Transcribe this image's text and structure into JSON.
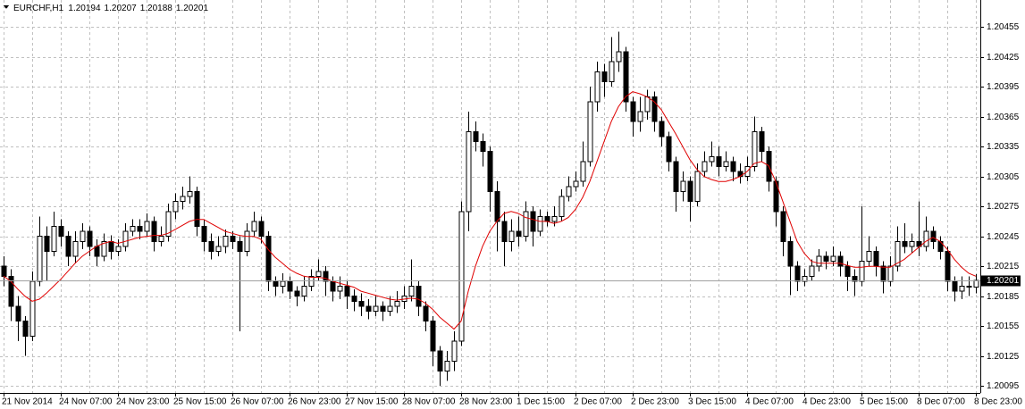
{
  "chart_data": {
    "type": "candlestick",
    "title": "EURCHF,H1",
    "categories": [
      "21 Nov 2014",
      null,
      null,
      null,
      null,
      null,
      null,
      null,
      "24 Nov 07:00",
      null,
      null,
      null,
      null,
      null,
      null,
      null,
      "24 Nov 23:00",
      null,
      null,
      null,
      null,
      null,
      null,
      null,
      "25 Nov 15:00",
      null,
      null,
      null,
      null,
      null,
      null,
      null,
      "26 Nov 07:00",
      null,
      null,
      null,
      null,
      null,
      null,
      null,
      "26 Nov 23:00",
      null,
      null,
      null,
      null,
      null,
      null,
      null,
      "27 Nov 15:00",
      null,
      null,
      null,
      null,
      null,
      null,
      null,
      "28 Nov 07:00",
      null,
      null,
      null,
      null,
      null,
      null,
      null,
      "28 Nov 23:00",
      null,
      null,
      null,
      null,
      null,
      null,
      null,
      "1 Dec 15:00",
      null,
      null,
      null,
      null,
      null,
      null,
      null,
      "2 Dec 07:00",
      null,
      null,
      null,
      null,
      null,
      null,
      null,
      "2 Dec 23:00",
      null,
      null,
      null,
      null,
      null,
      null,
      null,
      "3 Dec 15:00",
      null,
      null,
      null,
      null,
      null,
      null,
      null,
      "4 Dec 07:00",
      null,
      null,
      null,
      null,
      null,
      null,
      null,
      "4 Dec 23:00",
      null,
      null,
      null,
      null,
      null,
      null,
      null,
      "5 Dec 15:00",
      null,
      null,
      null,
      null,
      null,
      null,
      null,
      "8 Dec 07:00",
      null,
      null,
      null,
      null,
      null,
      null,
      null,
      "8 Dec 23:00"
    ],
    "open": [
      1.20215,
      1.20205,
      1.20175,
      1.2016,
      1.20145,
      1.202,
      1.20245,
      1.2023,
      1.20255,
      1.20245,
      1.20225,
      1.2024,
      1.2025,
      1.20235,
      1.20225,
      1.2024,
      1.2023,
      1.20235,
      1.2025,
      1.20255,
      1.2025,
      1.2026,
      1.2024,
      1.20245,
      1.2027,
      1.2028,
      1.20285,
      1.2029,
      1.20255,
      1.2024,
      1.2023,
      1.20235,
      1.20245,
      1.2024,
      1.2023,
      1.2025,
      1.2026,
      1.20245,
      1.202,
      1.20195,
      1.202,
      1.2019,
      1.20185,
      1.20195,
      1.20205,
      1.2021,
      1.202,
      1.2019,
      1.20195,
      1.20185,
      1.2018,
      1.20175,
      1.2017,
      1.20175,
      1.2017,
      1.20175,
      1.2018,
      1.20185,
      1.20195,
      1.20175,
      1.2016,
      1.2013,
      1.2011,
      1.2012,
      1.2014,
      1.2027,
      1.2035,
      1.2034,
      1.2033,
      1.2029,
      1.2026,
      1.2024,
      1.2025,
      1.20245,
      1.2027,
      1.2025,
      1.20265,
      1.2026,
      1.20265,
      1.20285,
      1.20295,
      1.203,
      1.2032,
      1.2038,
      1.2041,
      1.204,
      1.2042,
      1.2043,
      1.2038,
      1.2036,
      1.2037,
      1.20385,
      1.2036,
      1.20345,
      1.2032,
      1.2029,
      1.203,
      1.2028,
      1.2031,
      1.2032,
      1.20325,
      1.20315,
      1.2032,
      1.2031,
      1.20305,
      1.20315,
      1.2035,
      1.2033,
      1.203,
      1.2027,
      1.2024,
      1.20215,
      1.202,
      1.20205,
      1.20215,
      1.20225,
      1.2022,
      1.20225,
      1.20215,
      1.20205,
      1.202,
      1.2022,
      1.2023,
      1.20215,
      1.202,
      1.20215,
      1.2024,
      1.20235,
      1.2024,
      1.20235,
      1.2025,
      1.2024,
      1.2023,
      1.202,
      1.2019,
      1.20195,
      1.20194
    ],
    "high": [
      1.20225,
      1.20212,
      1.20185,
      1.20165,
      1.2021,
      1.20265,
      1.20255,
      1.2027,
      1.20262,
      1.2025,
      1.2025,
      1.20258,
      1.20255,
      1.20242,
      1.20248,
      1.20246,
      1.20242,
      1.20258,
      1.20262,
      1.20262,
      1.20268,
      1.20265,
      1.20255,
      1.20278,
      1.20288,
      1.20295,
      1.20305,
      1.20295,
      1.20262,
      1.20248,
      1.20245,
      1.20252,
      1.2025,
      1.20245,
      1.20258,
      1.2027,
      1.20265,
      1.2025,
      1.20205,
      1.20208,
      1.20205,
      1.20195,
      1.20205,
      1.20212,
      1.20222,
      1.20215,
      1.20205,
      1.20205,
      1.202,
      1.20192,
      1.20188,
      1.20182,
      1.20185,
      1.2018,
      1.20185,
      1.2019,
      1.20195,
      1.20222,
      1.202,
      1.2018,
      1.20165,
      1.20135,
      1.2013,
      1.2015,
      1.2028,
      1.2037,
      1.2036,
      1.20348,
      1.20335,
      1.203,
      1.2027,
      1.20262,
      1.20265,
      1.2028,
      1.20275,
      1.20272,
      1.2027,
      1.20275,
      1.20292,
      1.20305,
      1.2031,
      1.2034,
      1.20395,
      1.2042,
      1.20418,
      1.20445,
      1.2045,
      1.20435,
      1.20385,
      1.20385,
      1.20392,
      1.2039,
      1.20365,
      1.2035,
      1.20325,
      1.2031,
      1.20305,
      1.20318,
      1.2033,
      1.2034,
      1.20335,
      1.2033,
      1.20325,
      1.20318,
      1.20325,
      1.20365,
      1.20355,
      1.20335,
      1.20305,
      1.20275,
      1.20245,
      1.2022,
      1.20212,
      1.20222,
      1.20232,
      1.2023,
      1.20235,
      1.2023,
      1.2022,
      1.20212,
      1.20275,
      1.20245,
      1.20235,
      1.2022,
      1.20225,
      1.20255,
      1.20258,
      1.20248,
      1.2028,
      1.20265,
      1.20255,
      1.20245,
      1.20235,
      1.20205,
      1.20205,
      1.20205,
      1.20207
    ],
    "low": [
      1.20195,
      1.2016,
      1.2014,
      1.20125,
      1.2014,
      1.20195,
      1.202,
      1.20225,
      1.20235,
      1.20215,
      1.20218,
      1.20232,
      1.20225,
      1.20215,
      1.2022,
      1.20222,
      1.20225,
      1.2023,
      1.20245,
      1.20242,
      1.20245,
      1.2023,
      1.20235,
      1.2024,
      1.20262,
      1.20272,
      1.20278,
      1.20245,
      1.2023,
      1.20222,
      1.20225,
      1.20228,
      1.20232,
      1.2015,
      1.20225,
      1.20245,
      1.20238,
      1.2019,
      1.20185,
      1.20188,
      1.20182,
      1.20175,
      1.2018,
      1.2019,
      1.202,
      1.20185,
      1.2018,
      1.20182,
      1.20172,
      1.2017,
      1.20165,
      1.20162,
      1.20165,
      1.2016,
      1.20165,
      1.20168,
      1.20172,
      1.2018,
      1.20165,
      1.2015,
      1.20115,
      1.20095,
      1.201,
      1.2011,
      1.20135,
      1.2025,
      1.2033,
      1.20315,
      1.2027,
      1.2023,
      1.20215,
      1.2023,
      1.20235,
      1.2024,
      1.20235,
      1.20245,
      1.20255,
      1.20255,
      1.2026,
      1.2028,
      1.2029,
      1.20295,
      1.20315,
      1.2037,
      1.20385,
      1.20395,
      1.2041,
      1.2037,
      1.20345,
      1.2035,
      1.20362,
      1.2035,
      1.20335,
      1.2031,
      1.2027,
      1.2028,
      1.2026,
      1.20275,
      1.20305,
      1.20315,
      1.20305,
      1.2031,
      1.203,
      1.20298,
      1.203,
      1.2031,
      1.2032,
      1.2029,
      1.20255,
      1.20225,
      1.20186,
      1.2019,
      1.20195,
      1.202,
      1.2021,
      1.20212,
      1.20215,
      1.20205,
      1.2019,
      1.20185,
      1.20195,
      1.20215,
      1.20205,
      1.20188,
      1.20195,
      1.2021,
      1.20228,
      1.20228,
      1.20225,
      1.2023,
      1.20232,
      1.20222,
      1.2019,
      1.2018,
      1.20182,
      1.20185,
      1.20188
    ],
    "close": [
      1.20205,
      1.20175,
      1.2016,
      1.20145,
      1.202,
      1.20245,
      1.2023,
      1.20255,
      1.20245,
      1.20225,
      1.2024,
      1.2025,
      1.20235,
      1.20225,
      1.2024,
      1.2023,
      1.20235,
      1.2025,
      1.20255,
      1.2025,
      1.2026,
      1.2024,
      1.20245,
      1.2027,
      1.2028,
      1.20285,
      1.2029,
      1.20255,
      1.2024,
      1.2023,
      1.20235,
      1.20245,
      1.2024,
      1.2023,
      1.2025,
      1.2026,
      1.20245,
      1.202,
      1.20195,
      1.202,
      1.2019,
      1.20185,
      1.20195,
      1.20205,
      1.2021,
      1.202,
      1.2019,
      1.20195,
      1.20185,
      1.2018,
      1.20175,
      1.2017,
      1.20175,
      1.2017,
      1.20175,
      1.2018,
      1.20185,
      1.20195,
      1.20175,
      1.2016,
      1.2013,
      1.2011,
      1.2012,
      1.2014,
      1.2027,
      1.2035,
      1.2034,
      1.2033,
      1.2029,
      1.2026,
      1.2024,
      1.2025,
      1.20245,
      1.2027,
      1.2025,
      1.20265,
      1.2026,
      1.20265,
      1.20285,
      1.20295,
      1.203,
      1.2032,
      1.2038,
      1.2041,
      1.204,
      1.2042,
      1.2043,
      1.2038,
      1.2036,
      1.2037,
      1.20385,
      1.2036,
      1.20345,
      1.2032,
      1.2029,
      1.203,
      1.2028,
      1.2031,
      1.2032,
      1.20325,
      1.20315,
      1.2032,
      1.2031,
      1.20305,
      1.20315,
      1.2035,
      1.2033,
      1.203,
      1.2027,
      1.2024,
      1.20215,
      1.202,
      1.20205,
      1.20215,
      1.20225,
      1.2022,
      1.20225,
      1.20215,
      1.20205,
      1.202,
      1.2022,
      1.2023,
      1.20215,
      1.202,
      1.20215,
      1.2024,
      1.20235,
      1.2024,
      1.20235,
      1.2025,
      1.2024,
      1.2023,
      1.202,
      1.2019,
      1.20195,
      1.20194,
      1.20201
    ],
    "ma": [
      1.20205,
      1.202,
      1.20192,
      1.20185,
      1.2018,
      1.20182,
      1.20188,
      1.20195,
      1.20202,
      1.2021,
      1.20218,
      1.20225,
      1.2023,
      1.20235,
      1.20238,
      1.2024,
      1.20238,
      1.2024,
      1.20242,
      1.20244,
      1.20245,
      1.20246,
      1.20246,
      1.20248,
      1.20252,
      1.20256,
      1.2026,
      1.20262,
      1.20262,
      1.20258,
      1.20254,
      1.2025,
      1.20248,
      1.20246,
      1.20245,
      1.20245,
      1.20242,
      1.20232,
      1.20224,
      1.20218,
      1.20212,
      1.20208,
      1.20205,
      1.20204,
      1.20204,
      1.20203,
      1.202,
      1.20198,
      1.20196,
      1.20194,
      1.2019,
      1.20188,
      1.20186,
      1.20184,
      1.20182,
      1.20181,
      1.20182,
      1.20183,
      1.20182,
      1.20178,
      1.20172,
      1.20164,
      1.20158,
      1.20152,
      1.2016,
      1.2019,
      1.20215,
      1.20235,
      1.2025,
      1.2026,
      1.20268,
      1.2027,
      1.20268,
      1.20264,
      1.20262,
      1.2026,
      1.2026,
      1.20258,
      1.2026,
      1.20264,
      1.20272,
      1.20284,
      1.203,
      1.2032,
      1.2034,
      1.2036,
      1.20375,
      1.20385,
      1.2039,
      1.20388,
      1.20385,
      1.2038,
      1.20372,
      1.2036,
      1.20348,
      1.20335,
      1.20322,
      1.20312,
      1.20305,
      1.20302,
      1.203,
      1.203,
      1.20302,
      1.20305,
      1.2031,
      1.20318,
      1.2032,
      1.20316,
      1.203,
      1.2028,
      1.2026,
      1.2024,
      1.20228,
      1.2022,
      1.20218,
      1.20218,
      1.20218,
      1.20218,
      1.20216,
      1.20214,
      1.20214,
      1.20215,
      1.20215,
      1.20214,
      1.20214,
      1.20218,
      1.20222,
      1.20228,
      1.20234,
      1.2024,
      1.20244,
      1.2024,
      1.20232,
      1.20222,
      1.20214,
      1.20208,
      1.20205
    ],
    "up_color": "#ffffff",
    "down_color": "#000000",
    "wick_color": "#000000",
    "ma_color": "#e00000",
    "ylim": [
      1.20088,
      1.20482
    ],
    "yticks": [
      1.20455,
      1.20425,
      1.20395,
      1.20365,
      1.20335,
      1.20305,
      1.20275,
      1.20245,
      1.20215,
      1.20185,
      1.20155,
      1.20125,
      1.20095
    ],
    "grid": true
  }
}
